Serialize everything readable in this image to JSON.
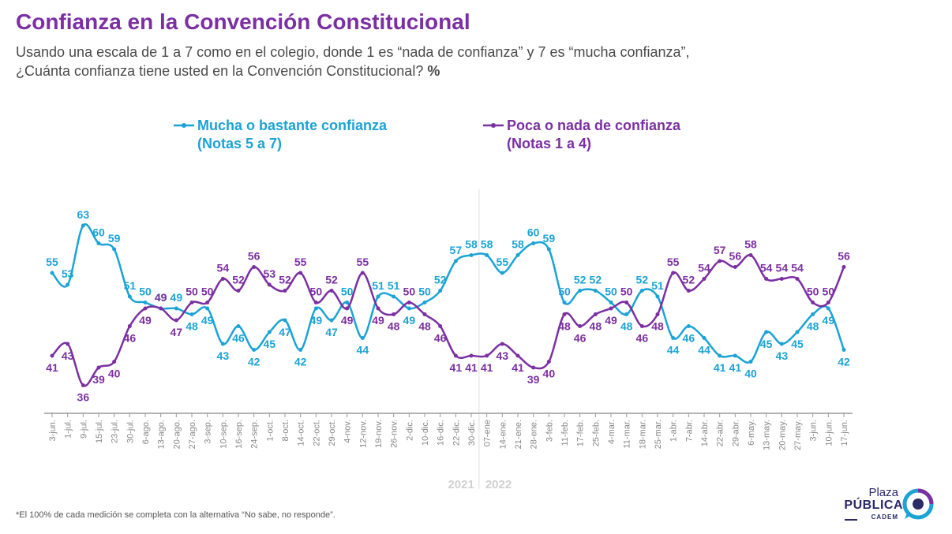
{
  "title": "Confianza en la Convención Constitucional",
  "subtitle": {
    "line1": "Usando una escala de 1 a 7 como en el colegio, donde 1 es “nada de confianza” y 7 es “mucha confianza”,",
    "line2": "¿Cuánta confianza tiene usted en la Convención Constitucional?",
    "unit": "%"
  },
  "footnote": "*El 100% de cada medición se completa con la alternativa “No sabe, no responde”.",
  "logo": {
    "line1": "Plaza",
    "line2": "PÚBLICA",
    "line3": "CADEM"
  },
  "colors": {
    "series1": "#1ba3d6",
    "series2": "#7b2fa2",
    "axis": "#999999",
    "divider": "#dddddd",
    "year": "#d0d0d0"
  },
  "chart_data": {
    "type": "line",
    "categories": [
      "3-jun.",
      "1-jul.",
      "9-jul.",
      "15-jul.",
      "23-jul.",
      "30-jul.",
      "6-ago.",
      "13-ago.",
      "20-ago.",
      "27-ago.",
      "3-sep.",
      "10-sep.",
      "16-sep.",
      "24-sep.",
      "1-oct.",
      "8-oct.",
      "14-oct.",
      "22-oct.",
      "29-oct.",
      "4-nov.",
      "12-nov.",
      "19-nov.",
      "26-nov.",
      "2-dic.",
      "10-dic.",
      "16-dic.",
      "22-dic.",
      "30-dic.",
      "07-ene",
      "14-ene.",
      "21-ene.",
      "28-ene.",
      "3-feb.",
      "11-feb.",
      "17-feb.",
      "25-feb.",
      "4-mar.",
      "11-mar.",
      "18-mar.",
      "25-mar.",
      "1-abr.",
      "7-abr.",
      "14-abr.",
      "22-abr.",
      "29-abr.",
      "6-may.",
      "13-may.",
      "20-may.",
      "27-may.",
      "3-jun.",
      "10-jun.",
      "17-jun."
    ],
    "series": [
      {
        "name": "Mucha o bastante confianza",
        "name_line2": "(Notas 5 a 7)",
        "values": [
          55,
          53,
          63,
          60,
          59,
          51,
          50,
          49,
          49,
          48,
          49,
          43,
          46,
          42,
          45,
          47,
          42,
          49,
          47,
          50,
          44,
          51,
          51,
          49,
          50,
          52,
          57,
          58,
          58,
          55,
          58,
          60,
          59,
          50,
          52,
          52,
          50,
          48,
          52,
          51,
          44,
          46,
          44,
          41,
          41,
          40,
          45,
          43,
          45,
          48,
          49,
          42
        ]
      },
      {
        "name": "Poca o nada de confianza",
        "name_line2": "(Notas 1 a 4)",
        "values": [
          41,
          43,
          36,
          39,
          40,
          46,
          49,
          49,
          47,
          50,
          50,
          54,
          52,
          56,
          53,
          52,
          55,
          50,
          52,
          49,
          55,
          49,
          48,
          50,
          48,
          46,
          41,
          41,
          41,
          43,
          41,
          39,
          40,
          48,
          46,
          48,
          49,
          50,
          46,
          48,
          55,
          52,
          54,
          57,
          56,
          58,
          54,
          54,
          54,
          50,
          50,
          56
        ]
      }
    ],
    "year_labels": [
      "2021",
      "2022"
    ],
    "ylim": [
      25,
      70
    ],
    "grid": false,
    "legend_position": "top"
  }
}
